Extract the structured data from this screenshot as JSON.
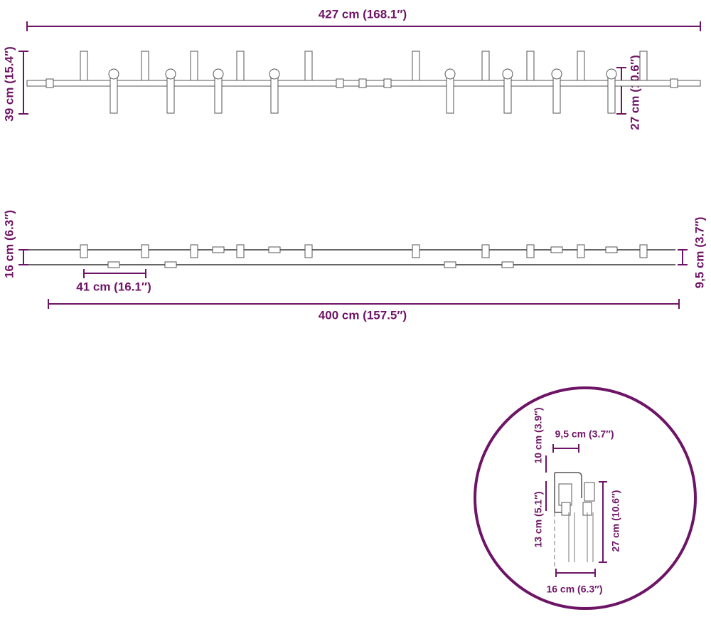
{
  "top_view": {
    "total_length": "427 cm (168.1″)",
    "height": "39 cm (15.4″)",
    "hanger_length": "27 cm (10.6″)"
  },
  "side_view": {
    "depth": "16 cm (6.3″)",
    "spacer_distance": "41 cm (16.1″)",
    "rail_length": "400 cm (157.5″)",
    "wall_gap": "9,5 cm (3.7″)"
  },
  "detail": {
    "offset": "9,5 cm (3.7″)",
    "top_height": "10 cm (3.9″)",
    "bracket_height": "13 cm (5.1″)",
    "hanger_length": "27 cm (10.6″)",
    "depth": "16 cm (6.3″)"
  }
}
